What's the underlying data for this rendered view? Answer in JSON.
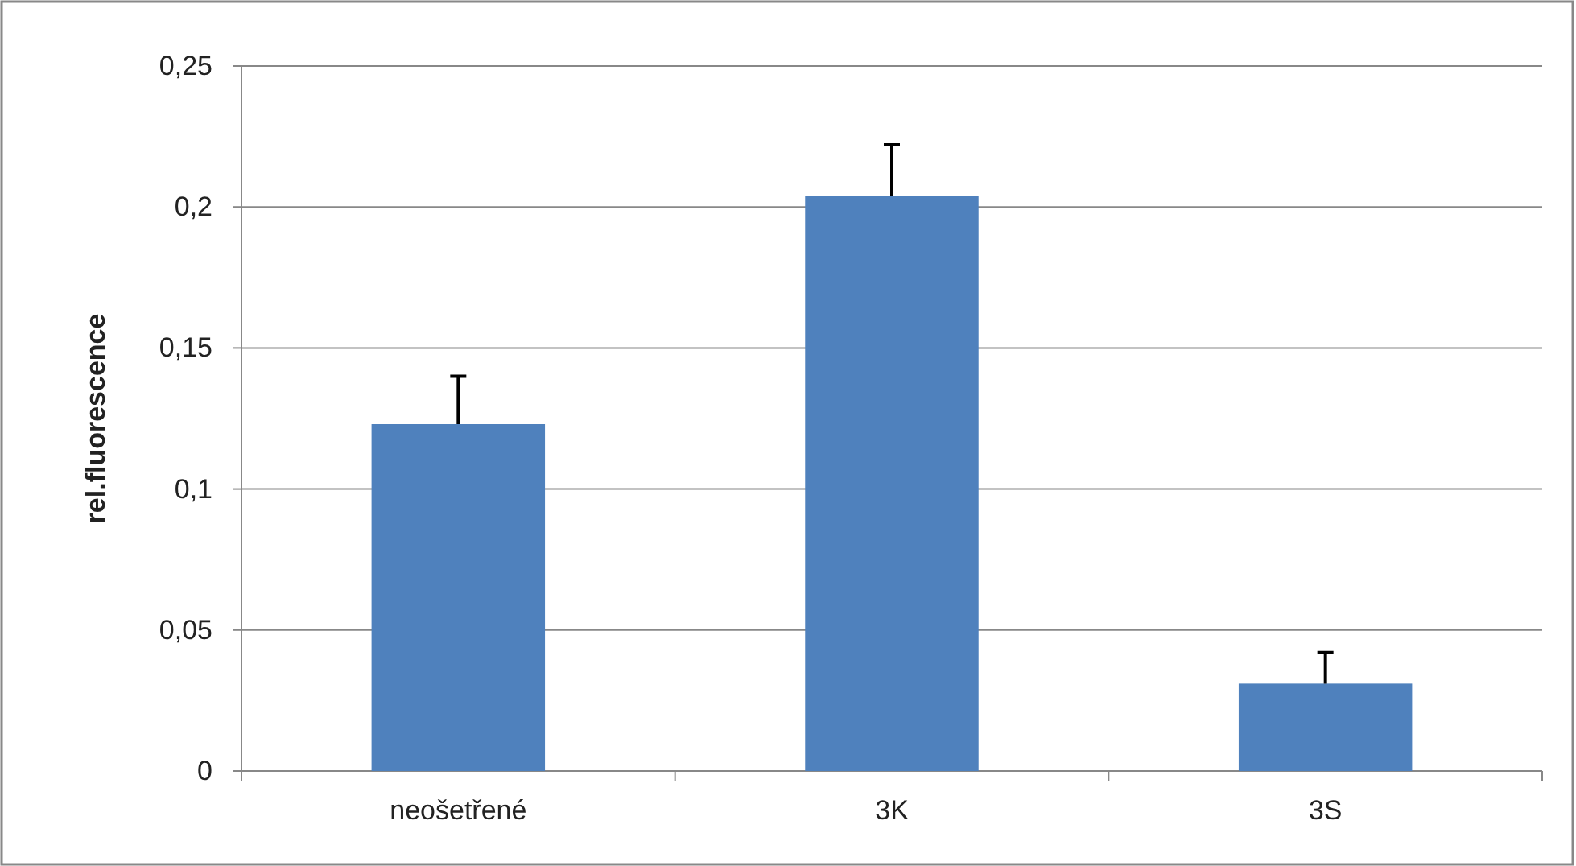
{
  "chart_data": {
    "type": "bar",
    "ylabel": "rel.fluorescence",
    "categories": [
      "neošetřené",
      "3K",
      "3S"
    ],
    "values": [
      0.123,
      0.204,
      0.031
    ],
    "errors": [
      [
        0.123,
        0.14
      ],
      [
        0.204,
        0.222
      ],
      [
        0.031,
        0.042
      ]
    ],
    "color": "#4f81bd",
    "ylim": [
      0,
      0.25
    ],
    "yticks": [
      0,
      {
        "value": 0.05,
        "label": "0,05"
      },
      {
        "value": 0.1,
        "label": "0,1"
      },
      {
        "value": 0.15,
        "label": "0,15"
      },
      {
        "value": 0.2,
        "label": "0,2"
      },
      {
        "value": 0.25,
        "label": "0,25"
      }
    ],
    "grid": "y"
  }
}
